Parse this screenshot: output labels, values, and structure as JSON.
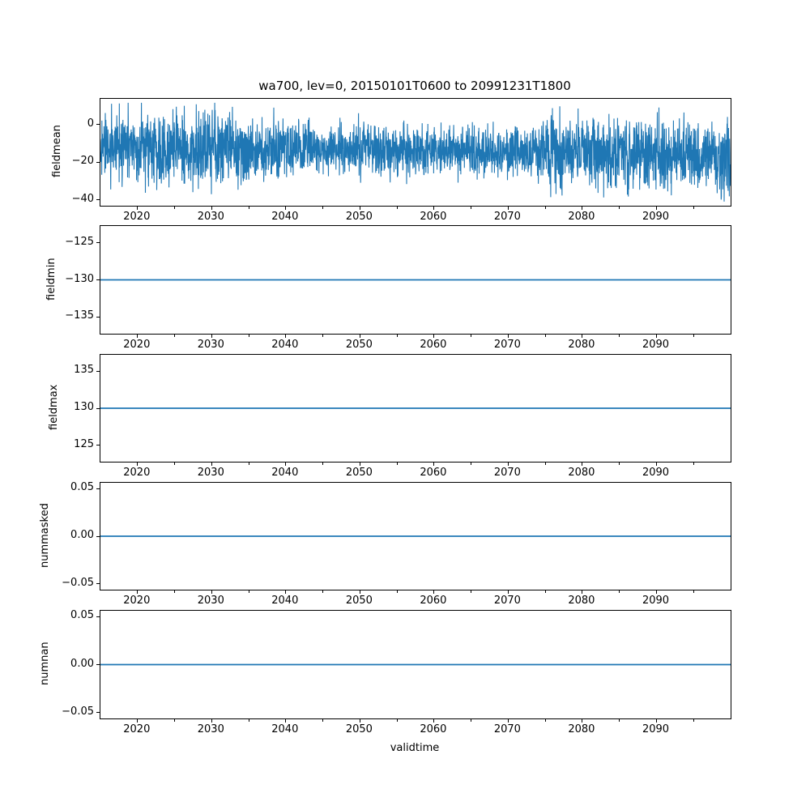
{
  "figure": {
    "title": "wa700, lev=0, 20150101T0600 to 20991231T1800",
    "background": "#ffffff",
    "line_color": "#1f77b4",
    "spine_color": "#000000"
  },
  "x_axis": {
    "label": "validtime",
    "xmin": 2015,
    "xmax": 2100,
    "major_ticks": [
      2020,
      2030,
      2040,
      2050,
      2060,
      2070,
      2080,
      2090
    ],
    "major_labels": [
      "2020",
      "2030",
      "2040",
      "2050",
      "2060",
      "2070",
      "2080",
      "2090"
    ],
    "minor_ticks": [
      2025,
      2035,
      2045,
      2055,
      2065,
      2075,
      2085,
      2095
    ]
  },
  "chart_data": [
    {
      "type": "line",
      "name": "fieldmean",
      "ylabel": "fieldmean",
      "ymin": -43.2,
      "ymax": 13.6,
      "yticks": [
        0,
        -20,
        -40
      ],
      "ytick_labels": [
        "0",
        "−20",
        "−40"
      ],
      "series": {
        "kind": "noise",
        "description": "dense 6-hourly noisy field mean, 2015-2099; core band approx -32 to +3, extremes approx -41 to +11",
        "mean": -15,
        "std": 8,
        "min": -41,
        "max": 11.5,
        "n": 3000,
        "seed": 77
      }
    },
    {
      "type": "line",
      "name": "fieldmin",
      "ylabel": "fieldmin",
      "ymin": -137.25,
      "ymax": -122.75,
      "yticks": [
        -125,
        -130,
        -135
      ],
      "ytick_labels": [
        "−125",
        "−130",
        "−135"
      ],
      "series": {
        "kind": "constant",
        "value": -130
      }
    },
    {
      "type": "line",
      "name": "fieldmax",
      "ylabel": "fieldmax",
      "ymin": 122.75,
      "ymax": 137.25,
      "yticks": [
        135,
        130,
        125
      ],
      "ytick_labels": [
        "135",
        "130",
        "125"
      ],
      "series": {
        "kind": "constant",
        "value": 130
      }
    },
    {
      "type": "line",
      "name": "nummasked",
      "ylabel": "nummasked",
      "ymin": -0.056,
      "ymax": 0.056,
      "yticks": [
        0.05,
        0.0,
        -0.05
      ],
      "ytick_labels": [
        "0.05",
        "0.00",
        "−0.05"
      ],
      "series": {
        "kind": "constant",
        "value": 0
      }
    },
    {
      "type": "line",
      "name": "numnan",
      "ylabel": "numnan",
      "ymin": -0.056,
      "ymax": 0.056,
      "yticks": [
        0.05,
        0.0,
        -0.05
      ],
      "ytick_labels": [
        "0.05",
        "0.00",
        "−0.05"
      ],
      "series": {
        "kind": "constant",
        "value": 0
      }
    }
  ],
  "layout_text": {
    "ylabel_centers_x": [
      71,
      64,
      67,
      56,
      56
    ]
  }
}
